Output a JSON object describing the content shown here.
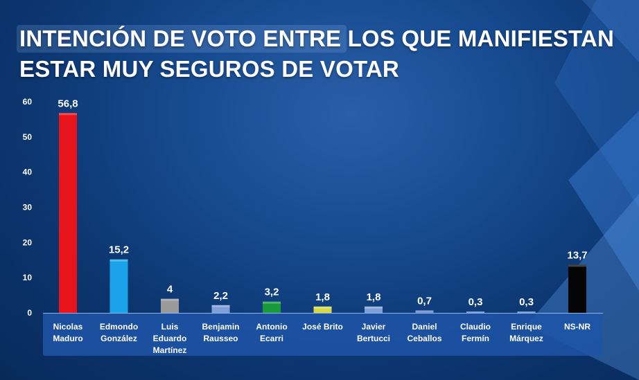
{
  "title_lines": [
    "INTENCIÓN DE VOTO ENTRE LOS QUE MANIFIESTAN",
    "ESTAR MUY SEGUROS DE VOTAR"
  ],
  "chart_data": {
    "type": "bar",
    "title": "INTENCIÓN DE VOTO ENTRE LOS QUE MANIFIESTAN ESTAR MUY SEGUROS DE VOTAR",
    "categories": [
      "Nicolas Maduro",
      "Edmondo González",
      "Luis Eduardo Martínez",
      "Benjamin Rausseo",
      "Antonio Ecarri",
      "José Brito",
      "Javier Bertucci",
      "Daniel Ceballos",
      "Claudio Fermín",
      "Enrique Márquez",
      "NS-NR"
    ],
    "category_label_lines": [
      [
        "Nicolas",
        "Maduro"
      ],
      [
        "Edmondo",
        "González"
      ],
      [
        "Luis",
        "Eduardo",
        "Martínez"
      ],
      [
        "Benjamin",
        "Rausseo"
      ],
      [
        "Antonio",
        "Ecarri"
      ],
      [
        "José Brito"
      ],
      [
        "Javier",
        "Bertucci"
      ],
      [
        "Daniel",
        "Ceballos"
      ],
      [
        "Claudio",
        "Fermín"
      ],
      [
        "Enrique",
        "Márquez"
      ],
      [
        "NS-NR"
      ]
    ],
    "values": [
      56.8,
      15.2,
      4,
      2.2,
      3.2,
      1.8,
      1.8,
      0.7,
      0.3,
      0.3,
      13.7
    ],
    "value_labels": [
      "56,8",
      "15,2",
      "4",
      "2,2",
      "3,2",
      "1,8",
      "1,8",
      "0,7",
      "0,3",
      "0,3",
      "13,7"
    ],
    "bar_colors": [
      "#e8141c",
      "#1aa3e8",
      "#9a9a9a",
      "#7f9fd8",
      "#189a3c",
      "#d6d646",
      "#7f9fd8",
      "#5d7fc7",
      "#5d7fc7",
      "#5d7fc7",
      "#050505"
    ],
    "ylim": [
      0,
      60
    ],
    "yticks": [
      0,
      10,
      20,
      30,
      40,
      50,
      60
    ],
    "xlabel": "",
    "ylabel": "",
    "grid": false,
    "legend": "none"
  },
  "colors": {
    "background": "#0c3670",
    "category_band": "#1f55a8",
    "text": "#ffffff"
  }
}
